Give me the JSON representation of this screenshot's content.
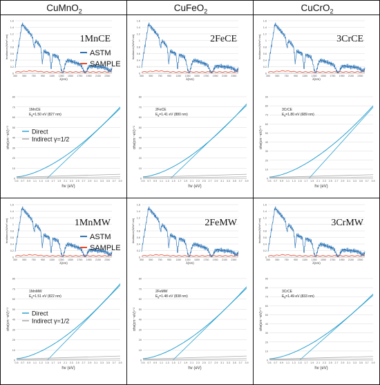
{
  "columns": [
    {
      "label": "CuMnO",
      "sub": "2"
    },
    {
      "label": "CuFeO",
      "sub": "2"
    },
    {
      "label": "CuCrO",
      "sub": "2"
    }
  ],
  "colors": {
    "astm": "#2e75b6",
    "sample": "#e8462a",
    "direct": "#2aa0cf",
    "indirect": "#a6a6a6",
    "grid": "#d9d9d9"
  },
  "chart_data": [
    {
      "id": "1MnCE",
      "type": "line",
      "panel": "spectrum",
      "label": "1MnCE",
      "ylabel": "Irradiance(W/m².nm)",
      "xlabel": "λ(nm)",
      "xticks": [
        "350",
        "550",
        "750",
        "950",
        "1150",
        "1350",
        "1550",
        "1750",
        "1950",
        "2150",
        "2350"
      ],
      "yticks": [
        "0",
        "0.2",
        "0.4",
        "0.6",
        "0.8",
        "1",
        "1.2",
        "1.4",
        "1.6"
      ],
      "xlim": [
        350,
        2450
      ],
      "ylim": [
        0,
        1.6
      ],
      "legend": [
        "ASTM",
        "SAMPLE"
      ]
    },
    {
      "id": "2FeCE",
      "type": "line",
      "panel": "spectrum",
      "label": "2FeCE",
      "ylabel": "Irradiance(W/m².nm)",
      "xlabel": "λ(nm)",
      "xticks": [
        "350",
        "550",
        "750",
        "950",
        "1150",
        "1350",
        "1550",
        "1750",
        "1950",
        "2150",
        "2350"
      ],
      "yticks": [
        "0",
        "0.2",
        "0.4",
        "0.6",
        "0.8",
        "1",
        "1.2",
        "1.4",
        "1.6"
      ],
      "xlim": [
        350,
        2450
      ],
      "ylim": [
        0,
        1.6
      ]
    },
    {
      "id": "3CrCE",
      "type": "line",
      "panel": "spectrum",
      "label": "3CrCE",
      "ylabel": "Irradiance(W/m².nm)",
      "xlabel": "λ(nm)",
      "xticks": [
        "350",
        "550",
        "750",
        "950",
        "1150",
        "1350",
        "1550",
        "1750",
        "1950",
        "2150",
        "2350"
      ],
      "yticks": [
        "0",
        "0.2",
        "0.4",
        "0.6",
        "0.8",
        "1",
        "1.2",
        "1.4",
        "1.6"
      ],
      "xlim": [
        350,
        2450
      ],
      "ylim": [
        0,
        1.6
      ]
    },
    {
      "id": "1MnCE-tauc",
      "type": "line",
      "panel": "tauc",
      "name": "1MnCE",
      "eg": "E",
      "eg_sub": "g",
      "eg_text": "=1.50 eV (827 nm)",
      "eg_value": 1.5,
      "ylabel": "αhv(cm⁻¹eV)¹ᐟ²",
      "xlabel": "hv (eV)",
      "xticks": [
        "0.5",
        "0.7",
        "0.9",
        "1.1",
        "1.3",
        "1.5",
        "1.7",
        "1.9",
        "2.1",
        "2.3",
        "2.5",
        "2.7",
        "2.9",
        "3.1",
        "3.3",
        "3.5",
        "3.7",
        "3.9"
      ],
      "yticks": [
        "0",
        "10",
        "20",
        "30",
        "40",
        "50",
        "60",
        "70",
        "80"
      ],
      "xlim": [
        0.5,
        3.9
      ],
      "ylim": [
        0,
        80
      ],
      "legend": [
        "Direct",
        "Indirect γ=1/2"
      ],
      "direct_end": 70
    },
    {
      "id": "2FeCE-tauc",
      "type": "line",
      "panel": "tauc",
      "name": "2FeCE",
      "eg": "E",
      "eg_sub": "g",
      "eg_text": "=1.41 eV (880 nm)",
      "eg_value": 1.41,
      "ylabel": "αhv(cm⁻¹eV)¹ᐟ²",
      "xlabel": "hv (eV)",
      "xticks": [
        "0.5",
        "0.7",
        "0.9",
        "1.1",
        "1.3",
        "1.5",
        "1.7",
        "1.9",
        "2.1",
        "2.3",
        "2.5",
        "2.7",
        "2.9",
        "3.1",
        "3.3",
        "3.5",
        "3.7",
        "3.9"
      ],
      "yticks": [
        "0",
        "10",
        "20",
        "30",
        "40",
        "50",
        "60",
        "70",
        "80"
      ],
      "xlim": [
        0.5,
        3.9
      ],
      "ylim": [
        0,
        80
      ],
      "direct_end": 73
    },
    {
      "id": "3CrCE-tauc",
      "type": "line",
      "panel": "tauc",
      "name": "3CrCE",
      "eg": "E",
      "eg_sub": "g",
      "eg_text": "=1.80 eV (689 nm)",
      "eg_value": 1.8,
      "ylabel": "αhv(cm⁻¹eV)¹ᐟ²",
      "xlabel": "hv (eV)",
      "xticks": [
        "0.5",
        "0.7",
        "0.9",
        "1.1",
        "1.3",
        "1.5",
        "1.7",
        "1.9",
        "2.1",
        "2.3",
        "2.5",
        "2.7",
        "2.9",
        "3.1",
        "3.3",
        "3.5",
        "3.7",
        "3.9"
      ],
      "yticks": [
        "0",
        "10",
        "20",
        "30",
        "40",
        "50",
        "60",
        "70",
        "80",
        "90"
      ],
      "xlim": [
        0.5,
        3.9
      ],
      "ylim": [
        0,
        90
      ],
      "direct_end": 80
    },
    {
      "id": "1MnMW",
      "type": "line",
      "panel": "spectrum",
      "label": "1MnMW",
      "ylabel": "Irradiance(W/m².nm)",
      "xlabel": "λ(nm)",
      "xticks": [
        "350",
        "550",
        "750",
        "950",
        "1150",
        "1350",
        "1550",
        "1750",
        "1950",
        "2150",
        "2350"
      ],
      "yticks": [
        "0",
        "0.2",
        "0.4",
        "0.6",
        "0.8",
        "1",
        "1.2",
        "1.4",
        "1.6"
      ],
      "xlim": [
        350,
        2450
      ],
      "ylim": [
        0,
        1.6
      ],
      "legend": [
        "ASTM",
        "SAMPLE"
      ]
    },
    {
      "id": "2FeMW",
      "type": "line",
      "panel": "spectrum",
      "label": "2FeMW",
      "ylabel": "Irradiance(W/m².nm)",
      "xlabel": "λ(nm)",
      "xticks": [
        "350",
        "550",
        "750",
        "950",
        "1150",
        "1350",
        "1550",
        "1750",
        "1950",
        "2150",
        "2350"
      ],
      "yticks": [
        "0",
        "0.2",
        "0.4",
        "0.6",
        "0.8",
        "1",
        "1.2",
        "1.4",
        "1.6"
      ],
      "xlim": [
        350,
        2450
      ],
      "ylim": [
        0,
        1.6
      ]
    },
    {
      "id": "3CrMW",
      "type": "line",
      "panel": "spectrum",
      "label": "3CrMW",
      "ylabel": "Irradiance(W/m².nm)",
      "xlabel": "λ(nm)",
      "xticks": [
        "350",
        "550",
        "750",
        "950",
        "1150",
        "1350",
        "1550",
        "1750",
        "1950",
        "2150",
        "2350"
      ],
      "yticks": [
        "0",
        "0.2",
        "0.4",
        "0.6",
        "0.8",
        "1",
        "1.2",
        "1.4",
        "1.6"
      ],
      "xlim": [
        350,
        2450
      ],
      "ylim": [
        0,
        1.6
      ]
    },
    {
      "id": "1MnMW-tauc",
      "type": "line",
      "panel": "tauc",
      "name": "1MnMW",
      "eg": "E",
      "eg_sub": "g",
      "eg_text": "=1.51 eV (822 nm)",
      "eg_value": 1.51,
      "ylabel": "αhv(cm⁻¹eV)¹ᐟ²",
      "xlabel": "hv (eV)",
      "xticks": [
        "0.5",
        "0.7",
        "0.9",
        "1.1",
        "1.3",
        "1.5",
        "1.7",
        "1.9",
        "2.1",
        "2.3",
        "2.5",
        "2.7",
        "2.9",
        "3.1",
        "3.3",
        "3.5",
        "3.7",
        "3.9"
      ],
      "yticks": [
        "0",
        "10",
        "20",
        "30",
        "40",
        "50",
        "60",
        "70",
        "80"
      ],
      "xlim": [
        0.5,
        3.9
      ],
      "ylim": [
        0,
        80
      ],
      "legend": [
        "Direct",
        "Indirect γ=1/2"
      ],
      "direct_end": 75
    },
    {
      "id": "2FeMW-tauc",
      "type": "line",
      "panel": "tauc",
      "name": "2FeMW",
      "eg": "E",
      "eg_sub": "g",
      "eg_text": "=1.48 eV (838 nm)",
      "eg_value": 1.48,
      "ylabel": "αhv(cm⁻¹eV)¹ᐟ²",
      "xlabel": "hv (eV)",
      "xticks": [
        "0.5",
        "0.7",
        "0.9",
        "1.1",
        "1.3",
        "1.5",
        "1.7",
        "1.9",
        "2.1",
        "2.3",
        "2.5",
        "2.7",
        "2.9",
        "3.1",
        "3.3",
        "3.5",
        "3.7",
        "3.9"
      ],
      "yticks": [
        "0",
        "10",
        "20",
        "30",
        "40",
        "50",
        "60",
        "70",
        "80"
      ],
      "xlim": [
        0.5,
        3.9
      ],
      "ylim": [
        0,
        80
      ],
      "direct_end": 72
    },
    {
      "id": "3CrMW-tauc",
      "type": "line",
      "panel": "tauc",
      "name": "3CrCE",
      "eg": "E",
      "eg_sub": "g",
      "eg_text": "=1.49 eV (833 nm)",
      "eg_value": 1.49,
      "ylabel": "αhv(cm⁻¹eV)¹ᐟ²",
      "xlabel": "hv (eV)",
      "xticks": [
        "0.5",
        "0.7",
        "0.9",
        "1.1",
        "1.3",
        "1.5",
        "1.7",
        "1.9",
        "2.1",
        "2.3",
        "2.5",
        "2.7",
        "2.9",
        "3.1",
        "3.3",
        "3.5",
        "3.7",
        "3.9"
      ],
      "yticks": [
        "0",
        "10",
        "20",
        "30",
        "40",
        "50",
        "60",
        "70",
        "80",
        "90"
      ],
      "xlim": [
        0.5,
        3.9
      ],
      "ylim": [
        0,
        90
      ],
      "direct_end": 73
    }
  ]
}
